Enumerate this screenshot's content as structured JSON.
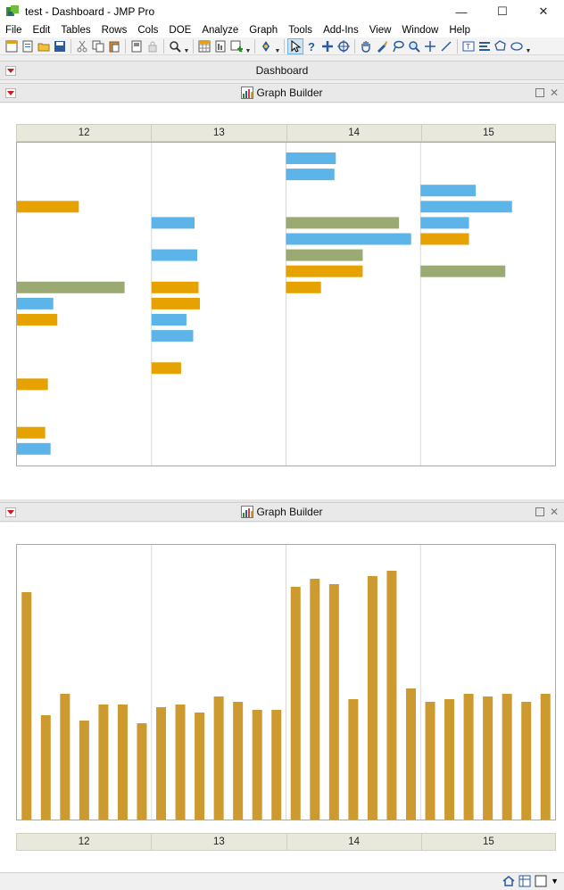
{
  "window": {
    "title": "test - Dashboard - JMP Pro",
    "minimize": "—",
    "maximize": "☐",
    "close": "✕"
  },
  "menu": [
    "File",
    "Edit",
    "Tables",
    "Rows",
    "Cols",
    "DOE",
    "Analyze",
    "Graph",
    "Tools",
    "Add-Ins",
    "View",
    "Window",
    "Help"
  ],
  "dashboard": {
    "title": "Dashboard"
  },
  "graph_builder_1": {
    "title": "Graph Builder"
  },
  "graph_builder_2": {
    "title": "Graph Builder"
  },
  "colors": {
    "blue": "#5db4e8",
    "orange": "#e5a200",
    "olive": "#9aaa72",
    "gold": "#cc9a2e"
  },
  "chart_data": [
    {
      "type": "bar",
      "orientation": "horizontal",
      "facets": [
        "12",
        "13",
        "14",
        "15"
      ],
      "facet_bars": [
        [
          {
            "row": 4,
            "value": 0.46,
            "color": "orange"
          },
          {
            "row": 9,
            "value": 0.8,
            "color": "olive"
          },
          {
            "row": 10,
            "value": 0.27,
            "color": "blue"
          },
          {
            "row": 11,
            "value": 0.3,
            "color": "orange"
          },
          {
            "row": 15,
            "value": 0.23,
            "color": "orange"
          },
          {
            "row": 18,
            "value": 0.21,
            "color": "orange"
          },
          {
            "row": 19,
            "value": 0.25,
            "color": "blue"
          }
        ],
        [
          {
            "row": 5,
            "value": 0.32,
            "color": "blue"
          },
          {
            "row": 7,
            "value": 0.34,
            "color": "blue"
          },
          {
            "row": 9,
            "value": 0.35,
            "color": "orange"
          },
          {
            "row": 10,
            "value": 0.36,
            "color": "orange"
          },
          {
            "row": 11,
            "value": 0.26,
            "color": "blue"
          },
          {
            "row": 12,
            "value": 0.31,
            "color": "blue"
          },
          {
            "row": 14,
            "value": 0.22,
            "color": "orange"
          }
        ],
        [
          {
            "row": 1,
            "value": 0.37,
            "color": "blue"
          },
          {
            "row": 2,
            "value": 0.36,
            "color": "blue"
          },
          {
            "row": 5,
            "value": 0.84,
            "color": "olive"
          },
          {
            "row": 6,
            "value": 0.93,
            "color": "blue"
          },
          {
            "row": 7,
            "value": 0.57,
            "color": "olive"
          },
          {
            "row": 8,
            "value": 0.57,
            "color": "orange"
          },
          {
            "row": 9,
            "value": 0.26,
            "color": "orange"
          }
        ],
        [
          {
            "row": 3,
            "value": 0.41,
            "color": "blue"
          },
          {
            "row": 4,
            "value": 0.68,
            "color": "blue"
          },
          {
            "row": 5,
            "value": 0.36,
            "color": "blue"
          },
          {
            "row": 6,
            "value": 0.36,
            "color": "orange"
          },
          {
            "row": 8,
            "value": 0.63,
            "color": "olive"
          }
        ]
      ]
    },
    {
      "type": "bar",
      "facets": [
        "12",
        "13",
        "14",
        "15"
      ],
      "values": [
        0.85,
        0.39,
        0.47,
        0.37,
        0.43,
        0.43,
        0.36,
        0.42,
        0.43,
        0.4,
        0.46,
        0.44,
        0.41,
        0.41,
        0.87,
        0.9,
        0.88,
        0.45,
        0.91,
        0.93,
        0.49,
        0.44,
        0.45,
        0.47,
        0.46,
        0.47,
        0.44,
        0.47
      ],
      "color": "gold"
    }
  ]
}
